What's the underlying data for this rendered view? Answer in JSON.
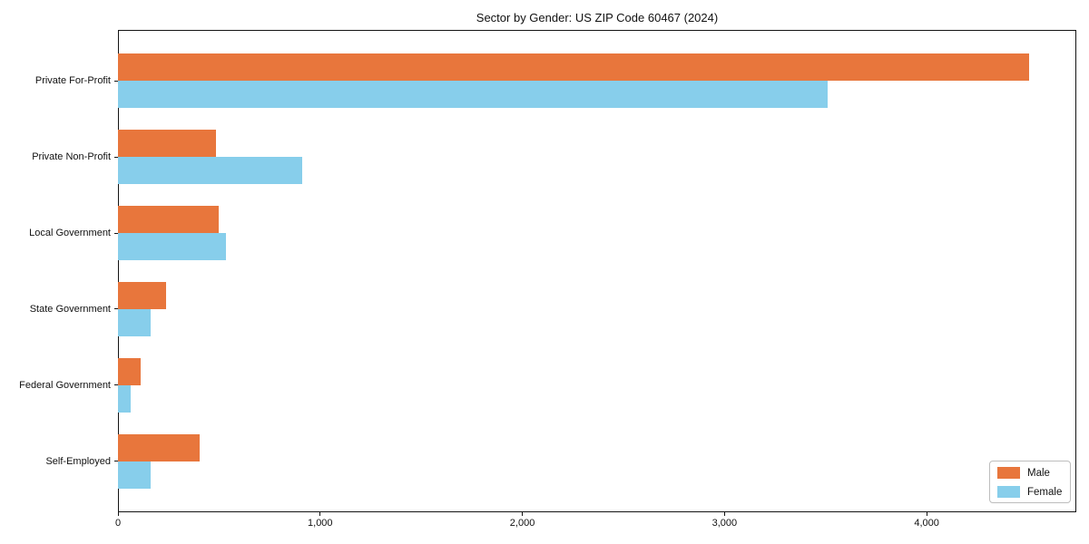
{
  "chart_data": {
    "type": "bar",
    "orientation": "horizontal",
    "title": "Sector by Gender: US ZIP Code 60467 (2024)",
    "categories": [
      "Private For-Profit",
      "Private Non-Profit",
      "Local Government",
      "State Government",
      "Federal Government",
      "Self-Employed"
    ],
    "series": [
      {
        "name": "Male",
        "color": "#E8763C",
        "values": [
          4508,
          486,
          500,
          236,
          114,
          405
        ]
      },
      {
        "name": "Female",
        "color": "#87CEEB",
        "values": [
          3508,
          909,
          535,
          161,
          63,
          163
        ]
      }
    ],
    "xlabel": "",
    "ylabel": "",
    "xlim": [
      0,
      4740
    ],
    "xticks": {
      "values": [
        0,
        1000,
        2000,
        3000,
        4000
      ],
      "labels": [
        "0",
        "1,000",
        "2,000",
        "3,000",
        "4,000"
      ]
    },
    "grid": false,
    "legend_position": "lower right",
    "axis_color": "#141414",
    "background_color": "#ffffff"
  }
}
